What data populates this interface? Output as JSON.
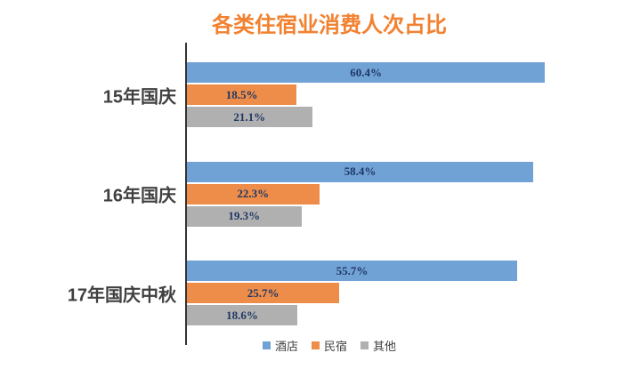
{
  "title": {
    "text": "各类住宿业消费人次占比"
  },
  "colors": {
    "title": "#F28130",
    "axis_line": "#333333",
    "data_label": "#1F3864",
    "category_label": "#404040",
    "legend_text": "#404040",
    "background": "#FFFFFF",
    "series_hotel": "#71A2D6",
    "series_minsu": "#EE8C4A",
    "series_other": "#B0B0B0"
  },
  "chart_data": {
    "type": "bar",
    "orientation": "horizontal",
    "title": "各类住宿业消费人次占比",
    "categories": [
      "15年国庆",
      "16年国庆",
      "17年国庆中秋"
    ],
    "series": [
      {
        "name": "酒店",
        "color": "#71A2D6",
        "values": [
          60.4,
          58.4,
          55.7
        ]
      },
      {
        "name": "民宿",
        "color": "#EE8C4A",
        "values": [
          18.5,
          22.3,
          25.7
        ]
      },
      {
        "name": "其他",
        "color": "#B0B0B0",
        "values": [
          21.1,
          19.3,
          18.6
        ]
      }
    ],
    "value_suffix": "%",
    "data_labels": true,
    "xlabel": "",
    "ylabel": "",
    "xlim": [
      0,
      70
    ],
    "grid": false,
    "legend_position": "bottom"
  }
}
